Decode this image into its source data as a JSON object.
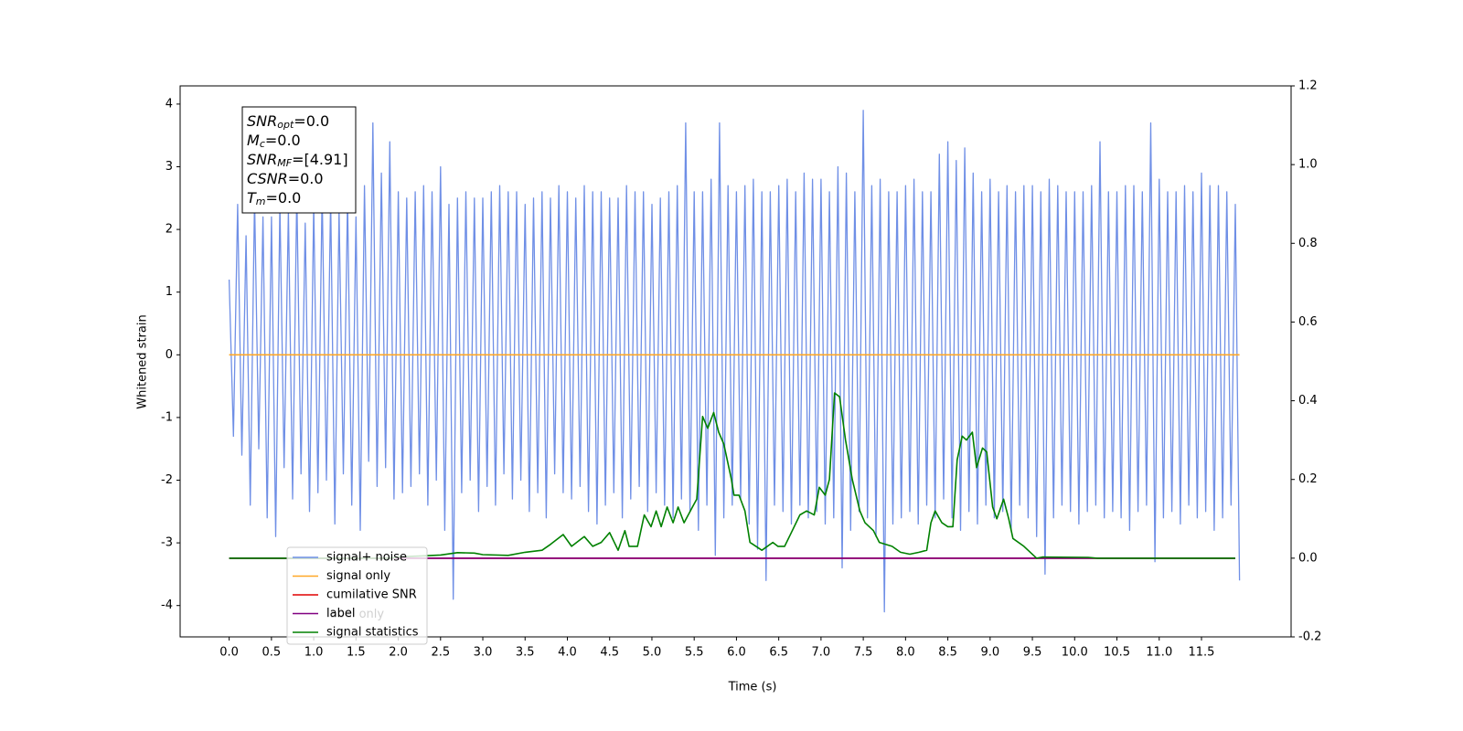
{
  "chart_data": {
    "type": "line",
    "xlabel": "Time (s)",
    "ylabel": "Whitened strain",
    "xlim": [
      -0.58,
      12.56
    ],
    "ylim": [
      -4.5,
      4.29
    ],
    "y2lim": [
      -0.2,
      1.2
    ],
    "xticks": [
      {
        "value": 0,
        "label": "0.0"
      },
      0.5,
      {
        "value": 1,
        "label": "1.0"
      },
      1.5,
      {
        "value": 2,
        "label": "2.0"
      },
      2.5,
      {
        "value": 3,
        "label": "3.0"
      },
      3.5,
      {
        "value": 4,
        "label": "4.0"
      },
      4.5,
      {
        "value": 5,
        "label": "5.0"
      },
      5.5,
      {
        "value": 6,
        "label": "6.0"
      },
      6.5,
      {
        "value": 7,
        "label": "7.0"
      },
      7.5,
      {
        "value": 8,
        "label": "8.0"
      },
      8.5,
      {
        "value": 9,
        "label": "9.0"
      },
      9.5,
      {
        "value": 10,
        "label": "10.0"
      },
      10.5,
      {
        "value": 11,
        "label": "11.0"
      },
      11.5
    ],
    "yticks": [
      -4,
      -3,
      -2,
      -1,
      0,
      1,
      2,
      3,
      4
    ],
    "y2ticks": [
      -0.2,
      {
        "value": 0,
        "label": "0.0"
      },
      0.2,
      0.4,
      0.6,
      0.8,
      {
        "value": 1,
        "label": "1.0"
      },
      1.2
    ],
    "legend": "lower left",
    "ghost_label": "label only",
    "textbox": [
      {
        "main": "SNR",
        "sub": "opt",
        "rest": "=0.0"
      },
      {
        "main": "M",
        "sub": "c",
        "rest": "=0.0"
      },
      {
        "main": "SNR",
        "sub": "MF",
        "rest": "=[4.91]"
      },
      {
        "main": "CSNR",
        "sub": null,
        "rest": "=0.0"
      },
      {
        "main": "T",
        "sub": "m",
        "rest": "=0.0"
      }
    ],
    "series": [
      {
        "name": "signal+ noise",
        "color": "#6f8fe6",
        "x": [
          0,
          0.05,
          0.1,
          0.15,
          0.2,
          0.25,
          0.3,
          0.35,
          0.4,
          0.45,
          0.5,
          0.55,
          0.6,
          0.65,
          0.7,
          0.75,
          0.8,
          0.85,
          0.9,
          0.95,
          1,
          1.05,
          1.1,
          1.15,
          1.2,
          1.25,
          1.3,
          1.35,
          1.4,
          1.45,
          1.5,
          1.55,
          1.6,
          1.65,
          1.7,
          1.75,
          1.8,
          1.85,
          1.9,
          1.95,
          2,
          2.05,
          2.1,
          2.15,
          2.2,
          2.25,
          2.3,
          2.35,
          2.4,
          2.45,
          2.5,
          2.55,
          2.6,
          2.65,
          2.7,
          2.75,
          2.8,
          2.85,
          2.9,
          2.95,
          3,
          3.05,
          3.1,
          3.15,
          3.2,
          3.25,
          3.3,
          3.35,
          3.4,
          3.45,
          3.5,
          3.55,
          3.6,
          3.65,
          3.7,
          3.75,
          3.8,
          3.85,
          3.9,
          3.95,
          4,
          4.05,
          4.1,
          4.15,
          4.2,
          4.25,
          4.3,
          4.35,
          4.4,
          4.45,
          4.5,
          4.55,
          4.6,
          4.65,
          4.7,
          4.75,
          4.8,
          4.85,
          4.9,
          4.95,
          5,
          5.05,
          5.1,
          5.15,
          5.2,
          5.25,
          5.3,
          5.35,
          5.4,
          5.45,
          5.5,
          5.55,
          5.6,
          5.65,
          5.7,
          5.75,
          5.8,
          5.85,
          5.9,
          5.95,
          6,
          6.05,
          6.1,
          6.15,
          6.2,
          6.25,
          6.3,
          6.35,
          6.4,
          6.45,
          6.5,
          6.55,
          6.6,
          6.65,
          6.7,
          6.75,
          6.8,
          6.85,
          6.9,
          6.95,
          7,
          7.05,
          7.1,
          7.15,
          7.2,
          7.25,
          7.3,
          7.35,
          7.4,
          7.45,
          7.5,
          7.55,
          7.6,
          7.65,
          7.7,
          7.75,
          7.8,
          7.85,
          7.9,
          7.95,
          8,
          8.05,
          8.1,
          8.15,
          8.2,
          8.25,
          8.3,
          8.35,
          8.4,
          8.45,
          8.5,
          8.55,
          8.6,
          8.65,
          8.7,
          8.75,
          8.8,
          8.85,
          8.9,
          8.95,
          9,
          9.05,
          9.1,
          9.15,
          9.2,
          9.25,
          9.3,
          9.35,
          9.4,
          9.45,
          9.5,
          9.55,
          9.6,
          9.65,
          9.7,
          9.75,
          9.8,
          9.85,
          9.9,
          9.95,
          10,
          10.05,
          10.1,
          10.15,
          10.2,
          10.25,
          10.3,
          10.35,
          10.4,
          10.45,
          10.5,
          10.55,
          10.6,
          10.65,
          10.7,
          10.75,
          10.8,
          10.85,
          10.9,
          10.95,
          11,
          11.05,
          11.1,
          11.15,
          11.2,
          11.25,
          11.3,
          11.35,
          11.4,
          11.45,
          11.5,
          11.55,
          11.6,
          11.65,
          11.7,
          11.75,
          11.8,
          11.85,
          11.9,
          11.95
        ],
        "values": [
          1.2,
          -1.3,
          2.4,
          -1.6,
          1.9,
          -2.4,
          2.5,
          -1.5,
          2.2,
          -2.6,
          2.2,
          -2.9,
          2.4,
          -1.8,
          2.3,
          -2.3,
          2.6,
          -1.9,
          2.1,
          -2.5,
          2.4,
          -2.2,
          2.6,
          -2.0,
          2.5,
          -2.7,
          2.3,
          -1.9,
          2.5,
          -2.4,
          2.2,
          -2.8,
          2.7,
          -1.7,
          3.7,
          -2.1,
          2.9,
          -1.8,
          3.4,
          -2.3,
          2.6,
          -2.2,
          2.5,
          -2.1,
          2.6,
          -1.9,
          2.7,
          -2.4,
          2.6,
          -2.0,
          3.0,
          -2.8,
          2.4,
          -3.9,
          2.5,
          -2.2,
          2.6,
          -2.0,
          2.5,
          -2.5,
          2.5,
          -2.1,
          2.6,
          -2.4,
          2.7,
          -1.9,
          2.6,
          -2.3,
          2.6,
          -2.0,
          2.4,
          -2.5,
          2.5,
          -2.2,
          2.6,
          -2.6,
          2.5,
          -1.9,
          2.7,
          -2.2,
          2.6,
          -2.3,
          2.5,
          -2.1,
          2.7,
          -2.5,
          2.6,
          -2.7,
          2.6,
          -2.4,
          2.5,
          -2.2,
          2.5,
          -2.6,
          2.7,
          -2.3,
          2.6,
          -2.1,
          2.6,
          -2.5,
          2.4,
          -2.2,
          2.5,
          -2.4,
          2.6,
          -2.6,
          2.7,
          -2.3,
          3.7,
          -2.5,
          2.6,
          -2.8,
          2.6,
          -2.4,
          2.8,
          -3.2,
          3.7,
          -2.6,
          2.7,
          -2.4,
          2.6,
          -2.3,
          2.7,
          -2.7,
          2.8,
          -3.1,
          2.6,
          -3.6,
          2.6,
          -2.4,
          2.7,
          -2.5,
          2.8,
          -2.7,
          2.6,
          -2.4,
          2.9,
          -2.6,
          2.8,
          -2.5,
          2.8,
          -2.7,
          2.6,
          -2.6,
          3.0,
          -3.4,
          2.9,
          -2.8,
          2.6,
          -2.5,
          3.9,
          -2.6,
          2.7,
          -2.9,
          2.8,
          -4.1,
          2.6,
          -2.7,
          2.6,
          -2.6,
          2.7,
          -2.5,
          2.8,
          -2.7,
          2.6,
          -2.4,
          2.6,
          -2.6,
          3.2,
          -2.3,
          3.4,
          -2.6,
          3.1,
          -2.8,
          3.3,
          -2.5,
          2.9,
          -2.7,
          2.6,
          -2.4,
          2.8,
          -2.6,
          2.6,
          -2.5,
          2.7,
          -2.8,
          2.6,
          -2.4,
          2.7,
          -2.6,
          2.7,
          -2.9,
          2.6,
          -3.5,
          2.8,
          -2.6,
          2.7,
          -2.4,
          2.6,
          -2.5,
          2.6,
          -2.7,
          2.6,
          -2.5,
          2.7,
          -2.4,
          3.4,
          -2.6,
          2.6,
          -2.5,
          2.6,
          -2.6,
          2.7,
          -2.8,
          2.7,
          -2.5,
          2.6,
          -2.4,
          3.7,
          -3.3,
          2.8,
          -2.6,
          2.6,
          -2.5,
          2.6,
          -2.7,
          2.7,
          -2.4,
          2.6,
          -2.6,
          2.9,
          -2.5,
          2.7,
          -2.8,
          2.7,
          -2.6,
          2.6,
          -2.4,
          2.4,
          -3.6
        ]
      },
      {
        "name": "signal only",
        "color": "#ffa726",
        "x": [
          0,
          11.95
        ],
        "values": [
          0,
          0
        ]
      },
      {
        "name": "cumilative SNR",
        "color": "#e00000",
        "axis": "y2",
        "x": [
          0,
          11.9
        ],
        "values": [
          0,
          0
        ]
      },
      {
        "name": "label",
        "color": "#800080",
        "axis": "y2",
        "x": [
          0,
          11.9
        ],
        "values": [
          0,
          0
        ]
      },
      {
        "name": "signal statistics",
        "color": "#008000",
        "axis": "y2",
        "x": [
          0,
          1.9,
          2.0,
          2.5,
          2.7,
          2.9,
          3.0,
          3.3,
          3.5,
          3.7,
          3.8,
          3.95,
          4.05,
          4.2,
          4.3,
          4.4,
          4.5,
          4.6,
          4.68,
          4.73,
          4.83,
          4.91,
          4.99,
          5.05,
          5.11,
          5.18,
          5.25,
          5.31,
          5.38,
          5.48,
          5.53,
          5.6,
          5.66,
          5.73,
          5.79,
          5.85,
          5.94,
          5.97,
          6.03,
          6.1,
          6.16,
          6.3,
          6.43,
          6.49,
          6.57,
          6.66,
          6.75,
          6.83,
          6.92,
          6.98,
          7.05,
          7.1,
          7.16,
          7.22,
          7.29,
          7.37,
          7.46,
          7.52,
          7.62,
          7.69,
          7.84,
          7.94,
          8.05,
          8.16,
          8.25,
          8.3,
          8.35,
          8.43,
          8.5,
          8.56,
          8.61,
          8.67,
          8.72,
          8.79,
          8.84,
          8.91,
          8.96,
          9.03,
          9.08,
          9.16,
          9.22,
          9.27,
          9.4,
          9.55,
          9.62,
          10.16,
          10.27,
          11.9
        ],
        "values": [
          0,
          0,
          0.003,
          0.008,
          0.014,
          0.013,
          0.009,
          0.007,
          0.015,
          0.02,
          0.035,
          0.06,
          0.03,
          0.055,
          0.03,
          0.04,
          0.065,
          0.02,
          0.07,
          0.03,
          0.03,
          0.11,
          0.08,
          0.12,
          0.08,
          0.13,
          0.09,
          0.13,
          0.09,
          0.13,
          0.15,
          0.36,
          0.33,
          0.37,
          0.32,
          0.29,
          0.2,
          0.16,
          0.16,
          0.12,
          0.04,
          0.02,
          0.04,
          0.03,
          0.03,
          0.07,
          0.11,
          0.12,
          0.11,
          0.18,
          0.16,
          0.2,
          0.42,
          0.41,
          0.3,
          0.2,
          0.12,
          0.09,
          0.07,
          0.04,
          0.03,
          0.015,
          0.01,
          0.015,
          0.02,
          0.09,
          0.12,
          0.09,
          0.08,
          0.08,
          0.25,
          0.31,
          0.3,
          0.32,
          0.23,
          0.28,
          0.27,
          0.13,
          0.1,
          0.15,
          0.1,
          0.05,
          0.03,
          0,
          0.003,
          0.002,
          0,
          0
        ]
      }
    ]
  }
}
